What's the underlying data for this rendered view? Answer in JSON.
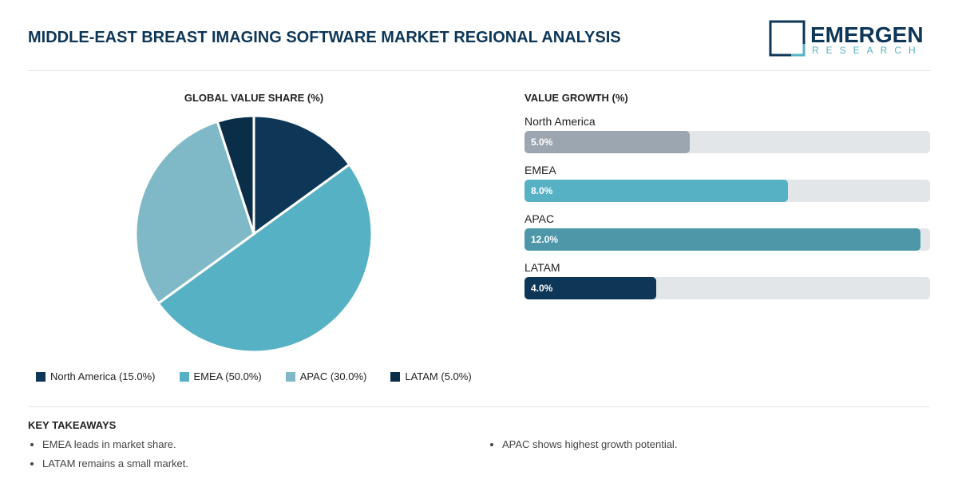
{
  "header": {
    "title": "MIDDLE-EAST BREAST IMAGING SOFTWARE MARKET REGIONAL ANALYSIS",
    "logo_text": "EMERGEN",
    "logo_sub": "RESEARCH"
  },
  "chart_data": [
    {
      "type": "pie",
      "title": "GLOBAL VALUE SHARE (%)",
      "categories": [
        "North America",
        "EMEA",
        "APAC",
        "LATAM"
      ],
      "values": [
        15.0,
        50.0,
        30.0,
        5.0
      ],
      "colors": [
        "#0d3657",
        "#57b1c4",
        "#7fb8c6",
        "#0b2e48"
      ],
      "legend": [
        "North America (15.0%)",
        "EMEA (50.0%)",
        "APAC (30.0%)",
        "LATAM (5.0%)"
      ],
      "legend_position": "bottom"
    },
    {
      "type": "bar",
      "orientation": "horizontal",
      "title": "VALUE GROWTH (%)",
      "categories": [
        "North America",
        "EMEA",
        "APAC",
        "LATAM"
      ],
      "values": [
        5.0,
        8.0,
        12.0,
        4.0
      ],
      "labels": [
        "5.0%",
        "8.0%",
        "12.0%",
        "4.0%"
      ],
      "colors": [
        "#9ca6b0",
        "#57b1c4",
        "#4d97a8",
        "#0d3657"
      ]
    }
  ],
  "takeaways": {
    "title": "KEY TAKEAWAYS",
    "left": [
      "EMEA leads in market share.",
      "LATAM remains a small market."
    ],
    "right": [
      "APAC shows highest growth potential."
    ]
  }
}
